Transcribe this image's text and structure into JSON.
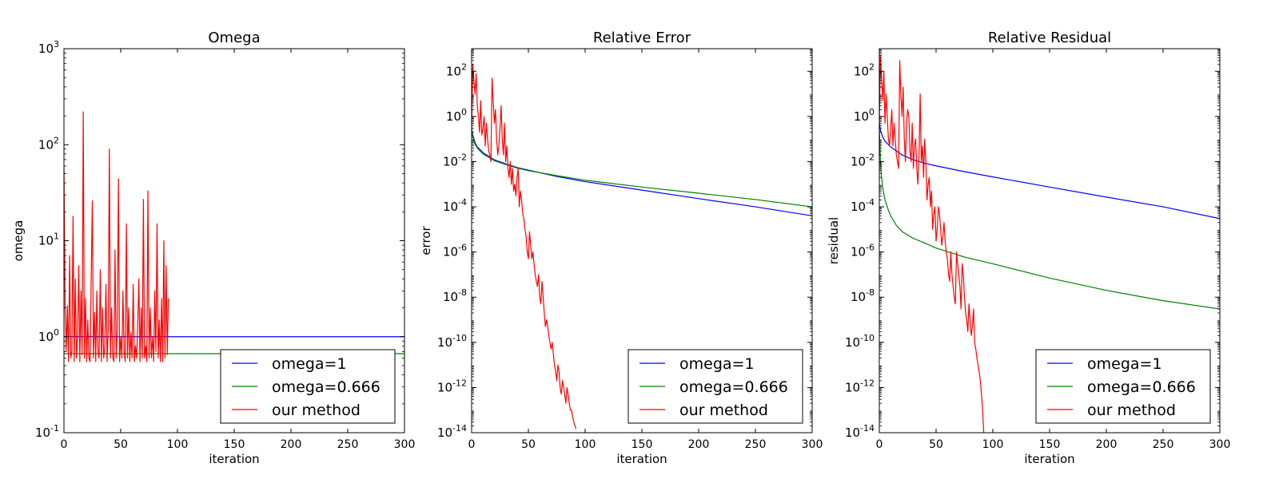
{
  "chart_data": [
    {
      "type": "line",
      "title": "Omega",
      "xlabel": "iteration",
      "ylabel": "omega",
      "xlim": [
        0,
        300
      ],
      "ylim": [
        0.1,
        1000
      ],
      "yscale": "log",
      "xticks": [
        0,
        50,
        100,
        150,
        200,
        250,
        300
      ],
      "yticks": [
        {
          "base": "10",
          "exp": "-1"
        },
        {
          "base": "10",
          "exp": "0"
        },
        {
          "base": "10",
          "exp": "1"
        },
        {
          "base": "10",
          "exp": "2"
        },
        {
          "base": "10",
          "exp": "3"
        }
      ],
      "legend_position": "lower-right",
      "series": [
        {
          "name": "omega=1",
          "color": "#0000ff",
          "x": [
            0,
            300
          ],
          "y": [
            1.0,
            1.0
          ]
        },
        {
          "name": "omega=0.666",
          "color": "#008000",
          "x": [
            0,
            300
          ],
          "y": [
            0.666,
            0.666
          ]
        },
        {
          "name": "our method",
          "color": "#ff0000",
          "x": [
            0,
            1,
            2,
            3,
            4,
            5,
            6,
            7,
            8,
            9,
            10,
            11,
            12,
            13,
            14,
            15,
            16,
            17,
            18,
            19,
            20,
            21,
            22,
            23,
            24,
            25,
            26,
            27,
            28,
            29,
            30,
            31,
            32,
            33,
            34,
            35,
            36,
            37,
            38,
            39,
            40,
            41,
            42,
            43,
            44,
            45,
            46,
            47,
            48,
            49,
            50,
            51,
            52,
            53,
            54,
            55,
            56,
            57,
            58,
            59,
            60,
            61,
            62,
            63,
            64,
            65,
            66,
            67,
            68,
            69,
            70,
            71,
            72,
            73,
            74,
            75,
            76,
            77,
            78,
            79,
            80,
            81,
            82,
            83,
            84,
            85,
            86,
            87,
            88,
            89,
            90,
            91,
            92
          ],
          "y": [
            60,
            2.2,
            0.7,
            2.1,
            0.55,
            7,
            0.6,
            0.7,
            18,
            0.55,
            4,
            0.6,
            1.0,
            5.5,
            0.55,
            3,
            0.65,
            220,
            0.6,
            2.5,
            0.55,
            1.5,
            0.6,
            0.55,
            4,
            26,
            0.6,
            1.8,
            0.55,
            3,
            0.7,
            0.6,
            5,
            0.55,
            2,
            0.6,
            0.8,
            3.5,
            0.55,
            1.2,
            90,
            0.6,
            2,
            0.6,
            0.55,
            8,
            0.6,
            1.2,
            44,
            0.55,
            1,
            0.6,
            3,
            0.7,
            0.55,
            15,
            0.6,
            2,
            0.55,
            1.1,
            0.6,
            3.5,
            0.55,
            0.8,
            0.6,
            1.3,
            4,
            0.55,
            2,
            0.6,
            27,
            0.6,
            0.8,
            0.55,
            33,
            0.6,
            2,
            0.6,
            1,
            0.55,
            3,
            0.7,
            15,
            0.6,
            1.5,
            0.55,
            2.5,
            0.55,
            10,
            0.6,
            5.5,
            0.65,
            2.5
          ]
        }
      ]
    },
    {
      "type": "line",
      "title": "Relative Error",
      "xlabel": "iteration",
      "ylabel": "error",
      "xlim": [
        0,
        300
      ],
      "ylim": [
        1e-14,
        1000
      ],
      "yscale": "log",
      "xticks": [
        0,
        50,
        100,
        150,
        200,
        250,
        300
      ],
      "yticks": [
        {
          "base": "10",
          "exp": "-14"
        },
        {
          "base": "10",
          "exp": "-12"
        },
        {
          "base": "10",
          "exp": "-10"
        },
        {
          "base": "10",
          "exp": "-8"
        },
        {
          "base": "10",
          "exp": "-6"
        },
        {
          "base": "10",
          "exp": "-4"
        },
        {
          "base": "10",
          "exp": "-2"
        },
        {
          "base": "10",
          "exp": "0"
        },
        {
          "base": "10",
          "exp": "2"
        }
      ],
      "legend_position": "lower-right",
      "series": [
        {
          "name": "omega=1",
          "color": "#0000ff",
          "x": [
            0,
            1,
            3,
            5,
            10,
            20,
            30,
            40,
            50,
            75,
            100,
            150,
            200,
            250,
            300
          ],
          "y": [
            0.3,
            0.15,
            0.07,
            0.045,
            0.025,
            0.012,
            0.008,
            0.0055,
            0.0042,
            0.0022,
            0.0013,
            0.00055,
            0.00023,
            0.0001,
            4e-05
          ]
        },
        {
          "name": "omega=0.666",
          "color": "#008000",
          "x": [
            0,
            1,
            3,
            5,
            10,
            20,
            30,
            40,
            50,
            75,
            100,
            150,
            200,
            250,
            300
          ],
          "y": [
            0.25,
            0.12,
            0.06,
            0.04,
            0.022,
            0.011,
            0.0075,
            0.0052,
            0.004,
            0.0024,
            0.0015,
            0.00075,
            0.0004,
            0.00021,
            0.0001
          ]
        },
        {
          "name": "our method",
          "color": "#ff0000",
          "x": [
            0,
            1,
            2,
            3,
            4,
            5,
            6,
            7,
            8,
            9,
            10,
            11,
            12,
            13,
            14,
            15,
            16,
            17,
            18,
            19,
            20,
            21,
            22,
            23,
            24,
            25,
            26,
            27,
            28,
            29,
            30,
            31,
            32,
            33,
            34,
            35,
            36,
            37,
            38,
            39,
            40,
            41,
            42,
            43,
            44,
            45,
            46,
            47,
            48,
            49,
            50,
            51,
            52,
            53,
            54,
            55,
            56,
            57,
            58,
            59,
            60,
            61,
            62,
            63,
            64,
            65,
            66,
            67,
            68,
            69,
            70,
            71,
            72,
            73,
            74,
            75,
            76,
            77,
            78,
            79,
            80,
            81,
            82,
            83,
            84,
            85,
            86,
            87,
            88,
            89,
            90,
            91,
            92
          ],
          "y": [
            0.3,
            200,
            40,
            10,
            80,
            3,
            1,
            0.2,
            5,
            0.15,
            0.3,
            1,
            0.05,
            0.5,
            0.1,
            0.03,
            0.02,
            0.01,
            50,
            5,
            0.5,
            2,
            0.1,
            0.02,
            0.05,
            0.3,
            3,
            0.1,
            0.02,
            0.5,
            0.01,
            0.05,
            0.005,
            0.002,
            0.01,
            0.001,
            0.005,
            0.0005,
            0.001,
            0.0003,
            0.002,
            0.005,
            0.0001,
            0.0005,
            0.0002,
            5e-05,
            3e-05,
            1e-05,
            5e-06,
            1e-06,
            5e-07,
            8e-06,
            2e-06,
            5e-07,
            1e-06,
            3e-07,
            1e-07,
            5e-08,
            3e-08,
            1e-07,
            1e-08,
            5e-09,
            5e-08,
            1e-08,
            2e-09,
            5e-10,
            1e-09,
            5e-10,
            2e-10,
            1e-10,
            5e-11,
            1e-10,
            3e-11,
            1e-11,
            5e-12,
            2e-12,
            1e-11,
            5e-12,
            1e-12,
            5e-13,
            2e-12,
            1e-12,
            5e-13,
            2e-13,
            1e-12,
            5e-13,
            2e-13,
            1e-13,
            1e-13,
            5e-14,
            3e-14,
            2e-14,
            1.5e-14
          ]
        }
      ]
    },
    {
      "type": "line",
      "title": "Relative Residual",
      "xlabel": "iteration",
      "ylabel": "residual",
      "xlim": [
        0,
        300
      ],
      "ylim": [
        1e-14,
        1000
      ],
      "yscale": "log",
      "xticks": [
        0,
        50,
        100,
        150,
        200,
        250,
        300
      ],
      "yticks": [
        {
          "base": "10",
          "exp": "-14"
        },
        {
          "base": "10",
          "exp": "-12"
        },
        {
          "base": "10",
          "exp": "-10"
        },
        {
          "base": "10",
          "exp": "-8"
        },
        {
          "base": "10",
          "exp": "-6"
        },
        {
          "base": "10",
          "exp": "-4"
        },
        {
          "base": "10",
          "exp": "-2"
        },
        {
          "base": "10",
          "exp": "0"
        },
        {
          "base": "10",
          "exp": "2"
        }
      ],
      "legend_position": "lower-right",
      "series": [
        {
          "name": "omega=1",
          "color": "#0000ff",
          "x": [
            0,
            1,
            3,
            5,
            10,
            20,
            30,
            40,
            50,
            75,
            100,
            150,
            200,
            250,
            300
          ],
          "y": [
            0.5,
            0.25,
            0.12,
            0.08,
            0.045,
            0.02,
            0.012,
            0.0085,
            0.0065,
            0.0036,
            0.0021,
            0.00075,
            0.00027,
            0.0001,
            3e-05
          ]
        },
        {
          "name": "omega=0.666",
          "color": "#008000",
          "x": [
            0,
            1,
            2,
            3,
            5,
            8,
            10,
            15,
            20,
            30,
            40,
            50,
            75,
            100,
            150,
            200,
            250,
            300
          ],
          "y": [
            0.3,
            0.01,
            0.002,
            0.0007,
            0.0002,
            7e-05,
            4e-05,
            1.5e-05,
            8e-06,
            4e-06,
            2.5e-06,
            1.5e-06,
            6e-07,
            3e-07,
            7e-08,
            2e-08,
            7e-09,
            3e-09
          ]
        },
        {
          "name": "our method",
          "color": "#ff0000",
          "x": [
            0,
            1,
            2,
            3,
            4,
            5,
            6,
            7,
            8,
            9,
            10,
            11,
            12,
            13,
            14,
            15,
            16,
            17,
            18,
            19,
            20,
            21,
            22,
            23,
            24,
            25,
            26,
            27,
            28,
            29,
            30,
            31,
            32,
            33,
            34,
            35,
            36,
            37,
            38,
            39,
            40,
            41,
            42,
            43,
            44,
            45,
            46,
            47,
            48,
            49,
            50,
            51,
            52,
            53,
            54,
            55,
            56,
            57,
            58,
            59,
            60,
            61,
            62,
            63,
            64,
            65,
            66,
            67,
            68,
            69,
            70,
            71,
            72,
            73,
            74,
            75,
            76,
            77,
            78,
            79,
            80,
            81,
            82,
            83,
            84,
            85,
            86,
            87,
            88,
            89,
            90,
            91,
            92
          ],
          "y": [
            0.5,
            500,
            50,
            5,
            100,
            0.5,
            10,
            1,
            0.1,
            0.05,
            0.3,
            2,
            0.05,
            0.5,
            0.1,
            0.02,
            0.01,
            0.005,
            300,
            10,
            1,
            20,
            0.1,
            0.01,
            0.5,
            2,
            1,
            0.03,
            0.01,
            0.5,
            0.005,
            0.05,
            0.1,
            0.005,
            0.001,
            0.02,
            10,
            0.01,
            0.05,
            0.002,
            0.1,
            0.01,
            0.0002,
            0.001,
            0.002,
            0.0001,
            0.0005,
            1e-05,
            5e-05,
            0.0001,
            3e-06,
            1e-05,
            0.0001,
            5e-05,
            1e-05,
            2e-06,
            5e-06,
            2e-05,
            3e-06,
            1e-06,
            5e-07,
            1e-07,
            5e-08,
            1e-06,
            1e-07,
            3e-08,
            1e-08,
            5e-09,
            1e-06,
            3e-07,
            1e-07,
            3e-08,
            3e-09,
            3e-07,
            1e-07,
            1e-08,
            2e-09,
            1e-09,
            3e-10,
            5e-09,
            1e-09,
            2e-10,
            5e-10,
            3e-09,
            1e-10,
            5e-11,
            2e-11,
            1e-11,
            5e-12,
            2e-12,
            5e-13,
            1e-13,
            1e-14
          ]
        }
      ]
    }
  ]
}
